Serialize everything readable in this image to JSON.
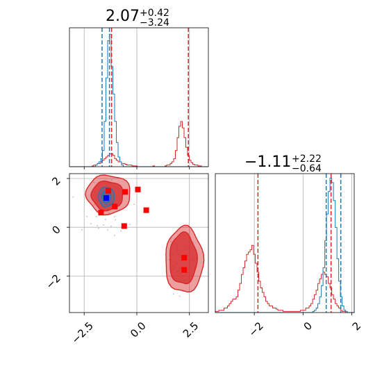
{
  "colors": {
    "blue": "#1f77b4",
    "red": "#d62728",
    "grid": "#b0b0b0",
    "axis": "#000000",
    "marker_blue": "#0000ff",
    "marker_red": "#ff0000",
    "scatter": "#c8c8c8"
  },
  "chart_data": {
    "type": "corner",
    "panels": {
      "x_marginal": {
        "title": {
          "main": "2.07",
          "sup": "+0.42",
          "sub": "−3.24"
        },
        "xlim": [
          -3.2,
          3.4
        ],
        "grid_x": [
          -2.5,
          0.0,
          2.5
        ],
        "blue_lines": [
          -1.65,
          -1.3
        ],
        "red_lines": [
          -1.2,
          2.45
        ],
        "blue_hist": {
          "bin_start": -3.2,
          "bin_width": 0.0825,
          "values": [
            0,
            0,
            0,
            0,
            0,
            0,
            0,
            0,
            0,
            0,
            0,
            0,
            0,
            0,
            0,
            0.01,
            0.02,
            0.03,
            0.05,
            0.1,
            0.28,
            0.55,
            0.78,
            0.82,
            0.62,
            0.45,
            0.28,
            0.15,
            0.06,
            0.03,
            0.01,
            0,
            0,
            0,
            0,
            0,
            0,
            0,
            0,
            0,
            0,
            0,
            0,
            0,
            0,
            0,
            0,
            0,
            0,
            0,
            0,
            0,
            0,
            0,
            0,
            0,
            0,
            0,
            0,
            0,
            0,
            0,
            0,
            0,
            0,
            0,
            0,
            0,
            0,
            0,
            0,
            0,
            0,
            0,
            0,
            0,
            0,
            0,
            0,
            0
          ]
        },
        "red_hist": {
          "bin_start": -3.2,
          "bin_width": 0.0825,
          "values": [
            0,
            0,
            0,
            0,
            0,
            0,
            0,
            0,
            0,
            0,
            0,
            0,
            0,
            0.005,
            0.01,
            0.01,
            0.02,
            0.02,
            0.03,
            0.04,
            0.05,
            0.06,
            0.07,
            0.08,
            0.08,
            0.07,
            0.05,
            0.04,
            0.03,
            0.03,
            0.02,
            0.02,
            0.015,
            0.01,
            0.01,
            0.01,
            0.005,
            0.005,
            0.005,
            0,
            0,
            0,
            0,
            0,
            0,
            0,
            0,
            0,
            0.005,
            0,
            0,
            0,
            0,
            0,
            0,
            0.005,
            0.01,
            0.01,
            0.02,
            0.03,
            0.05,
            0.1,
            0.18,
            0.25,
            0.28,
            0.24,
            0.18,
            0.12,
            0.07,
            0.04,
            0.025,
            0.015,
            0.01,
            0.01,
            0.005,
            0.005,
            0,
            0,
            0,
            0
          ]
        }
      },
      "joint": {
        "xlim": [
          -3.2,
          3.4
        ],
        "ylim": [
          -3.5,
          2.2
        ],
        "x_ticks": [
          "−2.5",
          "0.0",
          "2.5"
        ],
        "x_tick_values": [
          -2.5,
          0.0,
          2.5
        ],
        "y_ticks": [
          "−2",
          "0",
          "2"
        ],
        "y_tick_values": [
          -2,
          0,
          2
        ],
        "blue_marker": [
          -1.45,
          1.2
        ],
        "red_markers": [
          [
            -1.7,
            0.6
          ],
          [
            -1.35,
            1.5
          ],
          [
            -1.05,
            0.85
          ],
          [
            -0.55,
            1.45
          ],
          [
            0.05,
            1.55
          ],
          [
            0.45,
            0.7
          ],
          [
            -0.6,
            0.05
          ],
          [
            2.25,
            -1.25
          ],
          [
            2.25,
            -1.75
          ]
        ],
        "red_contours": [
          {
            "cx": -1.35,
            "cy": 1.35,
            "rx": 1.05,
            "ry": 0.8,
            "level": "outer"
          },
          {
            "cx": -1.4,
            "cy": 1.3,
            "rx": 0.75,
            "ry": 0.6,
            "level": "inner"
          },
          {
            "cx": 2.25,
            "cy": -1.35,
            "rx": 0.9,
            "ry": 1.35,
            "level": "outer"
          },
          {
            "cx": 2.2,
            "cy": -1.3,
            "rx": 0.65,
            "ry": 1.05,
            "level": "inner"
          }
        ],
        "blue_contours": [
          {
            "cx": -1.45,
            "cy": 1.25,
            "rx": 0.38,
            "ry": 0.4,
            "level": "outer"
          },
          {
            "cx": -1.45,
            "cy": 1.25,
            "rx": 0.22,
            "ry": 0.25,
            "level": "inner"
          }
        ]
      },
      "y_marginal": {
        "title": {
          "main": "−1.11",
          "sup": "+2.22",
          "sub": "−0.64"
        },
        "xlim": [
          -3.6,
          2.1
        ],
        "x_ticks": [
          "−2",
          "0",
          "2"
        ],
        "x_tick_values": [
          -2,
          0,
          2
        ],
        "blue_lines": [
          0.95,
          1.55
        ],
        "red_lines": [
          -1.85,
          1.15
        ],
        "blue_hist": {
          "bin_start": -3.6,
          "bin_width": 0.0713,
          "values": [
            0,
            0,
            0,
            0,
            0,
            0,
            0,
            0,
            0,
            0,
            0,
            0,
            0,
            0,
            0,
            0,
            0,
            0,
            0,
            0,
            0,
            0,
            0,
            0,
            0,
            0,
            0,
            0,
            0,
            0,
            0,
            0,
            0,
            0,
            0,
            0,
            0,
            0,
            0,
            0,
            0,
            0,
            0,
            0,
            0,
            0,
            0,
            0,
            0,
            0,
            0,
            0,
            0,
            0,
            0,
            0,
            0.005,
            0.01,
            0.02,
            0.04,
            0.07,
            0.12,
            0.2,
            0.32,
            0.44,
            0.54,
            0.6,
            0.58,
            0.5,
            0.38,
            0.24,
            0.14,
            0.07,
            0.03,
            0.01,
            0.005,
            0,
            0,
            0,
            0
          ]
        },
        "red_hist": {
          "bin_start": -3.6,
          "bin_width": 0.0713,
          "values": [
            0.005,
            0.005,
            0.01,
            0.01,
            0.01,
            0.02,
            0.02,
            0.03,
            0.04,
            0.05,
            0.06,
            0.06,
            0.07,
            0.1,
            0.13,
            0.17,
            0.2,
            0.23,
            0.26,
            0.27,
            0.28,
            0.3,
            0.26,
            0.22,
            0.18,
            0.14,
            0.11,
            0.09,
            0.07,
            0.05,
            0.04,
            0.03,
            0.03,
            0.02,
            0.02,
            0.015,
            0.01,
            0.01,
            0.01,
            0.005,
            0.005,
            0.005,
            0.005,
            0.005,
            0.005,
            0.005,
            0.005,
            0.005,
            0.005,
            0.01,
            0.01,
            0.01,
            0.02,
            0.02,
            0.03,
            0.04,
            0.06,
            0.08,
            0.1,
            0.13,
            0.15,
            0.17,
            0.18,
            0.17,
            0.16,
            0.13,
            0.11,
            0.08,
            0.06,
            0.04,
            0.03,
            0.02,
            0.01,
            0.005,
            0.005,
            0,
            0,
            0,
            0,
            0
          ]
        }
      }
    }
  }
}
